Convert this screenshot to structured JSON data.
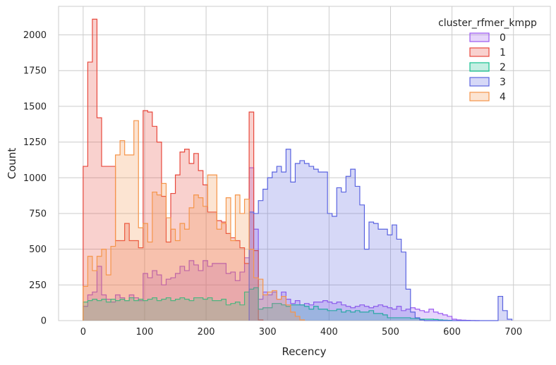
{
  "chart_data": {
    "type": "histogram",
    "xlabel": "Recency",
    "ylabel": "Count",
    "xlim": [
      -40,
      760
    ],
    "ylim": [
      0,
      2200
    ],
    "x_ticks": [
      0,
      100,
      200,
      300,
      400,
      500,
      600,
      700
    ],
    "y_ticks": [
      0,
      250,
      500,
      750,
      1000,
      1250,
      1500,
      1750,
      2000
    ],
    "grid": true,
    "bin_width": 7.5,
    "element": "step, filled, overlaid",
    "legend": {
      "title": "cluster_rfmer_kmpp",
      "placement": "top-right"
    },
    "series": [
      {
        "name": "0",
        "color": "#9b59f0",
        "bins": [
          [
            0,
            100
          ],
          [
            7.5,
            180
          ],
          [
            15,
            200
          ],
          [
            22.5,
            380
          ],
          [
            30,
            180
          ],
          [
            37.5,
            150
          ],
          [
            45,
            130
          ],
          [
            52.5,
            180
          ],
          [
            60,
            160
          ],
          [
            67.5,
            140
          ],
          [
            75,
            180
          ],
          [
            82.5,
            160
          ],
          [
            90,
            140
          ],
          [
            97.5,
            330
          ],
          [
            105,
            300
          ],
          [
            112.5,
            350
          ],
          [
            120,
            320
          ],
          [
            127.5,
            250
          ],
          [
            135,
            290
          ],
          [
            142.5,
            300
          ],
          [
            150,
            330
          ],
          [
            157.5,
            380
          ],
          [
            165,
            350
          ],
          [
            172.5,
            420
          ],
          [
            180,
            390
          ],
          [
            187.5,
            350
          ],
          [
            195,
            420
          ],
          [
            202.5,
            380
          ],
          [
            210,
            400
          ],
          [
            217.5,
            400
          ],
          [
            225,
            400
          ],
          [
            232.5,
            330
          ],
          [
            240,
            340
          ],
          [
            247.5,
            280
          ],
          [
            255,
            340
          ],
          [
            262.5,
            440
          ],
          [
            270,
            1070
          ],
          [
            277.5,
            640
          ],
          [
            285,
            150
          ],
          [
            292.5,
            200
          ],
          [
            300,
            180
          ],
          [
            307.5,
            200
          ],
          [
            315,
            150
          ],
          [
            322.5,
            200
          ],
          [
            330,
            150
          ],
          [
            337.5,
            120
          ],
          [
            345,
            140
          ],
          [
            352.5,
            110
          ],
          [
            360,
            120
          ],
          [
            367.5,
            110
          ],
          [
            375,
            130
          ],
          [
            382.5,
            130
          ],
          [
            390,
            140
          ],
          [
            397.5,
            130
          ],
          [
            405,
            120
          ],
          [
            412.5,
            130
          ],
          [
            420,
            110
          ],
          [
            427.5,
            100
          ],
          [
            435,
            90
          ],
          [
            442.5,
            100
          ],
          [
            450,
            110
          ],
          [
            457.5,
            100
          ],
          [
            465,
            90
          ],
          [
            472.5,
            100
          ],
          [
            480,
            110
          ],
          [
            487.5,
            100
          ],
          [
            495,
            90
          ],
          [
            502.5,
            80
          ],
          [
            510,
            100
          ],
          [
            517.5,
            70
          ],
          [
            525,
            80
          ],
          [
            532.5,
            90
          ],
          [
            540,
            80
          ],
          [
            547.5,
            70
          ],
          [
            555,
            60
          ],
          [
            562.5,
            80
          ],
          [
            570,
            60
          ],
          [
            577.5,
            50
          ],
          [
            585,
            40
          ],
          [
            592.5,
            30
          ],
          [
            600,
            10
          ],
          [
            607.5,
            5
          ],
          [
            615,
            3
          ],
          [
            622.5,
            2
          ],
          [
            630,
            1
          ],
          [
            637.5,
            0
          ]
        ]
      },
      {
        "name": "1",
        "color": "#e8483c",
        "bins": [
          [
            0,
            1080
          ],
          [
            7.5,
            1810
          ],
          [
            15,
            2110
          ],
          [
            22.5,
            1420
          ],
          [
            30,
            1080
          ],
          [
            37.5,
            1080
          ],
          [
            45,
            1080
          ],
          [
            52.5,
            560
          ],
          [
            60,
            560
          ],
          [
            67.5,
            680
          ],
          [
            75,
            560
          ],
          [
            82.5,
            560
          ],
          [
            90,
            510
          ],
          [
            97.5,
            1470
          ],
          [
            105,
            1460
          ],
          [
            112.5,
            1360
          ],
          [
            120,
            1250
          ],
          [
            127.5,
            870
          ],
          [
            135,
            550
          ],
          [
            142.5,
            890
          ],
          [
            150,
            1020
          ],
          [
            157.5,
            1180
          ],
          [
            165,
            1200
          ],
          [
            172.5,
            1100
          ],
          [
            180,
            1170
          ],
          [
            187.5,
            1050
          ],
          [
            195,
            950
          ],
          [
            202.5,
            760
          ],
          [
            210,
            760
          ],
          [
            217.5,
            700
          ],
          [
            225,
            690
          ],
          [
            232.5,
            610
          ],
          [
            240,
            580
          ],
          [
            247.5,
            560
          ],
          [
            255,
            510
          ],
          [
            262.5,
            400
          ],
          [
            270,
            1460
          ],
          [
            277.5,
            490
          ],
          [
            285,
            5
          ]
        ]
      },
      {
        "name": "2",
        "color": "#16c090",
        "bins": [
          [
            0,
            130
          ],
          [
            7.5,
            140
          ],
          [
            15,
            150
          ],
          [
            22.5,
            140
          ],
          [
            30,
            150
          ],
          [
            37.5,
            130
          ],
          [
            45,
            150
          ],
          [
            52.5,
            140
          ],
          [
            60,
            150
          ],
          [
            67.5,
            140
          ],
          [
            75,
            160
          ],
          [
            82.5,
            140
          ],
          [
            90,
            150
          ],
          [
            97.5,
            140
          ],
          [
            105,
            150
          ],
          [
            112.5,
            160
          ],
          [
            120,
            140
          ],
          [
            127.5,
            150
          ],
          [
            135,
            160
          ],
          [
            142.5,
            140
          ],
          [
            150,
            150
          ],
          [
            157.5,
            160
          ],
          [
            165,
            150
          ],
          [
            172.5,
            140
          ],
          [
            180,
            160
          ],
          [
            187.5,
            160
          ],
          [
            195,
            150
          ],
          [
            202.5,
            160
          ],
          [
            210,
            140
          ],
          [
            217.5,
            140
          ],
          [
            225,
            150
          ],
          [
            232.5,
            110
          ],
          [
            240,
            120
          ],
          [
            247.5,
            130
          ],
          [
            255,
            110
          ],
          [
            262.5,
            200
          ],
          [
            270,
            220
          ],
          [
            277.5,
            230
          ],
          [
            285,
            80
          ],
          [
            292.5,
            90
          ],
          [
            300,
            90
          ],
          [
            307.5,
            120
          ],
          [
            315,
            120
          ],
          [
            322.5,
            110
          ],
          [
            330,
            100
          ],
          [
            337.5,
            110
          ],
          [
            345,
            110
          ],
          [
            352.5,
            110
          ],
          [
            360,
            100
          ],
          [
            367.5,
            80
          ],
          [
            375,
            100
          ],
          [
            382.5,
            80
          ],
          [
            390,
            80
          ],
          [
            397.5,
            70
          ],
          [
            405,
            70
          ],
          [
            412.5,
            80
          ],
          [
            420,
            60
          ],
          [
            427.5,
            70
          ],
          [
            435,
            60
          ],
          [
            442.5,
            70
          ],
          [
            450,
            60
          ],
          [
            457.5,
            60
          ],
          [
            465,
            70
          ],
          [
            472.5,
            50
          ],
          [
            480,
            50
          ],
          [
            487.5,
            40
          ],
          [
            495,
            20
          ],
          [
            502.5,
            20
          ],
          [
            510,
            20
          ],
          [
            517.5,
            20
          ],
          [
            525,
            20
          ],
          [
            532.5,
            15
          ],
          [
            540,
            15
          ],
          [
            547.5,
            10
          ],
          [
            555,
            10
          ],
          [
            562.5,
            10
          ],
          [
            570,
            8
          ],
          [
            577.5,
            5
          ],
          [
            585,
            3
          ],
          [
            592.5,
            2
          ]
        ]
      },
      {
        "name": "3",
        "color": "#5a63e0",
        "bins": [
          [
            270,
            760
          ],
          [
            277.5,
            750
          ],
          [
            285,
            840
          ],
          [
            292.5,
            920
          ],
          [
            300,
            1000
          ],
          [
            307.5,
            1040
          ],
          [
            315,
            1080
          ],
          [
            322.5,
            1040
          ],
          [
            330,
            1200
          ],
          [
            337.5,
            970
          ],
          [
            345,
            1100
          ],
          [
            352.5,
            1120
          ],
          [
            360,
            1100
          ],
          [
            367.5,
            1080
          ],
          [
            375,
            1060
          ],
          [
            382.5,
            1040
          ],
          [
            390,
            1040
          ],
          [
            397.5,
            750
          ],
          [
            405,
            730
          ],
          [
            412.5,
            930
          ],
          [
            420,
            900
          ],
          [
            427.5,
            1010
          ],
          [
            435,
            1060
          ],
          [
            442.5,
            940
          ],
          [
            450,
            810
          ],
          [
            457.5,
            500
          ],
          [
            465,
            690
          ],
          [
            472.5,
            680
          ],
          [
            480,
            640
          ],
          [
            487.5,
            640
          ],
          [
            495,
            600
          ],
          [
            502.5,
            670
          ],
          [
            510,
            570
          ],
          [
            517.5,
            480
          ],
          [
            525,
            220
          ],
          [
            532.5,
            60
          ],
          [
            540,
            20
          ],
          [
            547.5,
            5
          ],
          [
            555,
            0
          ],
          [
            562.5,
            0
          ],
          [
            570,
            0
          ],
          [
            577.5,
            0
          ],
          [
            585,
            0
          ],
          [
            592.5,
            0
          ],
          [
            600,
            0
          ],
          [
            607.5,
            0
          ],
          [
            615,
            0
          ],
          [
            622.5,
            0
          ],
          [
            630,
            0
          ],
          [
            637.5,
            0
          ],
          [
            645,
            0
          ],
          [
            652.5,
            0
          ],
          [
            660,
            0
          ],
          [
            667.5,
            0
          ],
          [
            675,
            170
          ],
          [
            682.5,
            70
          ],
          [
            690,
            10
          ]
        ]
      },
      {
        "name": "4",
        "color": "#f5954a",
        "bins": [
          [
            0,
            240
          ],
          [
            7.5,
            450
          ],
          [
            15,
            350
          ],
          [
            22.5,
            450
          ],
          [
            30,
            500
          ],
          [
            37.5,
            320
          ],
          [
            45,
            520
          ],
          [
            52.5,
            1160
          ],
          [
            60,
            1260
          ],
          [
            67.5,
            1160
          ],
          [
            75,
            1160
          ],
          [
            82.5,
            1400
          ],
          [
            90,
            650
          ],
          [
            97.5,
            680
          ],
          [
            105,
            550
          ],
          [
            112.5,
            900
          ],
          [
            120,
            880
          ],
          [
            127.5,
            960
          ],
          [
            135,
            720
          ],
          [
            142.5,
            640
          ],
          [
            150,
            560
          ],
          [
            157.5,
            680
          ],
          [
            165,
            640
          ],
          [
            172.5,
            790
          ],
          [
            180,
            880
          ],
          [
            187.5,
            860
          ],
          [
            195,
            800
          ],
          [
            202.5,
            1020
          ],
          [
            210,
            1020
          ],
          [
            217.5,
            640
          ],
          [
            225,
            680
          ],
          [
            232.5,
            860
          ],
          [
            240,
            560
          ],
          [
            247.5,
            880
          ],
          [
            255,
            750
          ],
          [
            262.5,
            850
          ],
          [
            270,
            500
          ],
          [
            277.5,
            300
          ],
          [
            285,
            290
          ],
          [
            292.5,
            180
          ],
          [
            300,
            200
          ],
          [
            307.5,
            210
          ],
          [
            315,
            150
          ],
          [
            322.5,
            170
          ],
          [
            330,
            110
          ],
          [
            337.5,
            60
          ],
          [
            345,
            30
          ],
          [
            352.5,
            5
          ]
        ]
      }
    ]
  }
}
